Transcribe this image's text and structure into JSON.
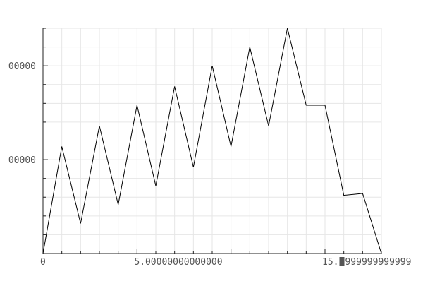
{
  "chart_data": {
    "type": "line",
    "title": "",
    "xlabel": "",
    "ylabel": "",
    "grid": true,
    "xlim": [
      0,
      18
    ],
    "ylim": [
      0,
      1.2
    ],
    "x": [
      0,
      1,
      2,
      3,
      4,
      5,
      6,
      7,
      8,
      9,
      10,
      11,
      12,
      13,
      14,
      15,
      16,
      17,
      18
    ],
    "series": [
      {
        "values": [
          0.0,
          0.57,
          0.16,
          0.68,
          0.26,
          0.79,
          0.36,
          0.89,
          0.46,
          1.0,
          0.57,
          1.1,
          0.68,
          1.2,
          0.79,
          0.79,
          0.31,
          0.32,
          0.0
        ]
      }
    ],
    "x_ticks": [
      {
        "value": 0,
        "label": "0"
      },
      {
        "value": 5,
        "label": "5.00000000000000"
      },
      {
        "value": 15,
        "label": "15.",
        "label_tail": "999999999999"
      }
    ],
    "y_ticks": [
      {
        "value": 0.5,
        "label": "00000"
      },
      {
        "value": 1.0,
        "label": "00000"
      }
    ],
    "colors": {
      "line": "#000000",
      "grid": "#e6e6e6",
      "axis": "#222222",
      "tick_text": "#555555"
    }
  }
}
